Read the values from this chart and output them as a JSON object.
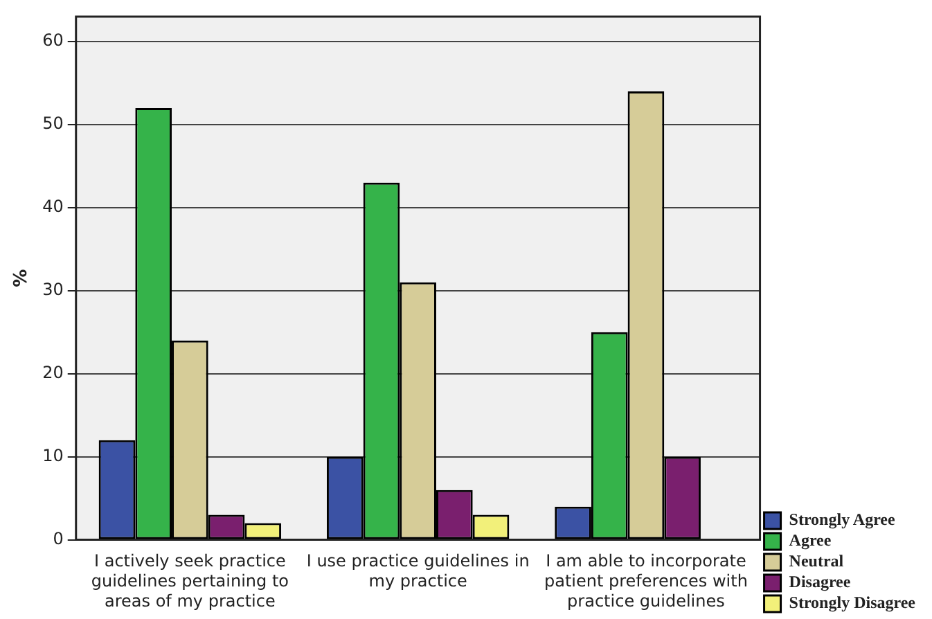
{
  "chart_data": {
    "type": "bar",
    "ylabel": "%",
    "categories": [
      "I actively seek practice guidelines pertaining to areas of my practice",
      "I use practice guidelines in my practice",
      "I am able to incorporate patient preferences with practice guidelines"
    ],
    "series": [
      {
        "name": "Strongly Agree",
        "color": "#3b52a4",
        "values": [
          12,
          10,
          4
        ]
      },
      {
        "name": "Agree",
        "color": "#35b34a",
        "values": [
          52,
          43,
          25
        ]
      },
      {
        "name": "Neutral",
        "color": "#d6cc98",
        "values": [
          24,
          31,
          54
        ]
      },
      {
        "name": "Disagree",
        "color": "#7a1f6e",
        "values": [
          3,
          6,
          10
        ]
      },
      {
        "name": "Strongly Disagree",
        "color": "#f2f07a",
        "values": [
          2,
          3,
          0
        ]
      }
    ],
    "ylim": [
      0,
      63
    ],
    "yticks": [
      0,
      10,
      20,
      30,
      40,
      50,
      60
    ],
    "grid": "y",
    "legend": "bottom right"
  }
}
